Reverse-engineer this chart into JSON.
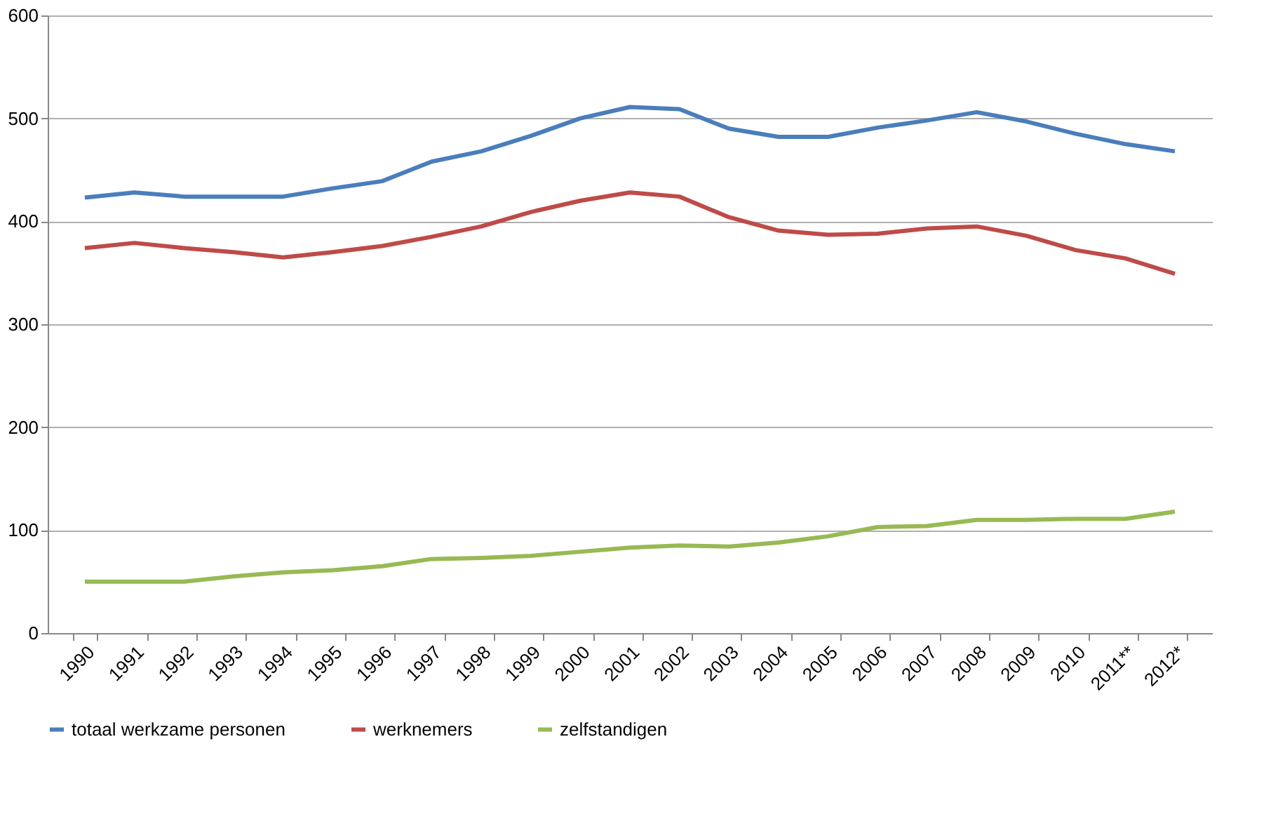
{
  "chart_data": {
    "type": "line",
    "categories": [
      "1990",
      "1991",
      "1992",
      "1993",
      "1994",
      "1995",
      "1996",
      "1997",
      "1998",
      "1999",
      "2000",
      "2001",
      "2002",
      "2003",
      "2004",
      "2005",
      "2006",
      "2007",
      "2008",
      "2009",
      "2010",
      "2011**",
      "2012*"
    ],
    "series": [
      {
        "name": "totaal werkzame personen",
        "color": "#4a7ebb",
        "values": [
          423,
          428,
          424,
          424,
          424,
          432,
          439,
          458,
          468,
          483,
          500,
          511,
          509,
          490,
          482,
          482,
          491,
          498,
          506,
          497,
          485,
          475,
          468
        ]
      },
      {
        "name": "werknemers",
        "color": "#be4b48",
        "values": [
          374,
          379,
          374,
          370,
          365,
          370,
          376,
          385,
          395,
          409,
          420,
          428,
          424,
          404,
          391,
          387,
          388,
          393,
          395,
          386,
          372,
          364,
          349
        ]
      },
      {
        "name": "zelfstandigen",
        "color": "#98b954",
        "values": [
          50,
          50,
          50,
          55,
          59,
          61,
          65,
          72,
          73,
          75,
          79,
          83,
          85,
          84,
          88,
          94,
          103,
          104,
          110,
          110,
          111,
          111,
          118
        ]
      }
    ],
    "ylim": [
      0,
      600
    ],
    "yticks": [
      0,
      100,
      200,
      300,
      400,
      500,
      600
    ],
    "grid": "y",
    "legend": "bottom",
    "marker": "none",
    "line_style": "solid"
  }
}
